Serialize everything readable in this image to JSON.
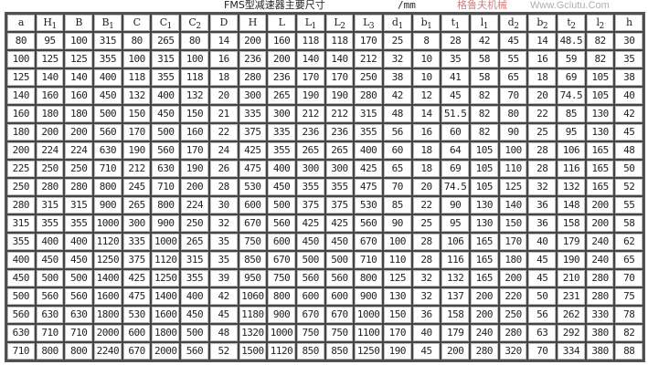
{
  "title": "FMS型减速器主要尺寸",
  "unit": "/mm",
  "watermark": {
    "text": "Www.Gclutu.Com",
    "chinese": "格鲁夫机械"
  },
  "headers": [
    {
      "base": "a",
      "sub": ""
    },
    {
      "base": "H",
      "sub": "1"
    },
    {
      "base": "B",
      "sub": ""
    },
    {
      "base": "B",
      "sub": "1"
    },
    {
      "base": "C",
      "sub": ""
    },
    {
      "base": "C",
      "sub": "1"
    },
    {
      "base": "C",
      "sub": "2"
    },
    {
      "base": "D",
      "sub": ""
    },
    {
      "base": "H",
      "sub": ""
    },
    {
      "base": "L",
      "sub": ""
    },
    {
      "base": "L",
      "sub": "1"
    },
    {
      "base": "L",
      "sub": "2"
    },
    {
      "base": "L",
      "sub": "3"
    },
    {
      "base": "d",
      "sub": "1"
    },
    {
      "base": "b",
      "sub": "1"
    },
    {
      "base": "t",
      "sub": "1"
    },
    {
      "base": "l",
      "sub": "1"
    },
    {
      "base": "d",
      "sub": "2"
    },
    {
      "base": "b",
      "sub": "2"
    },
    {
      "base": "t",
      "sub": "2"
    },
    {
      "base": "l",
      "sub": "2"
    },
    {
      "base": "h",
      "sub": ""
    }
  ],
  "rows": [
    [
      "80",
      "95",
      "100",
      "315",
      "80",
      "265",
      "80",
      "14",
      "200",
      "160",
      "118",
      "118",
      "170",
      "25",
      "8",
      "28",
      "42",
      "45",
      "14",
      "48.5",
      "82",
      "30"
    ],
    [
      "100",
      "125",
      "125",
      "355",
      "100",
      "315",
      "100",
      "16",
      "236",
      "200",
      "140",
      "140",
      "212",
      "32",
      "10",
      "35",
      "58",
      "55",
      "16",
      "59",
      "82",
      "35"
    ],
    [
      "125",
      "140",
      "140",
      "400",
      "118",
      "355",
      "118",
      "18",
      "280",
      "236",
      "170",
      "170",
      "250",
      "38",
      "10",
      "41",
      "58",
      "65",
      "18",
      "69",
      "105",
      "38"
    ],
    [
      "140",
      "160",
      "160",
      "450",
      "132",
      "400",
      "132",
      "20",
      "300",
      "265",
      "190",
      "190",
      "280",
      "42",
      "12",
      "45",
      "82",
      "70",
      "20",
      "74.5",
      "105",
      "40"
    ],
    [
      "160",
      "180",
      "180",
      "500",
      "150",
      "450",
      "150",
      "21",
      "335",
      "300",
      "212",
      "212",
      "315",
      "48",
      "14",
      "51.5",
      "82",
      "80",
      "22",
      "85",
      "130",
      "42"
    ],
    [
      "180",
      "200",
      "200",
      "560",
      "170",
      "500",
      "160",
      "22",
      "375",
      "335",
      "236",
      "236",
      "355",
      "56",
      "16",
      "60",
      "82",
      "90",
      "25",
      "95",
      "130",
      "45"
    ],
    [
      "200",
      "224",
      "224",
      "630",
      "190",
      "560",
      "170",
      "24",
      "425",
      "355",
      "265",
      "265",
      "400",
      "60",
      "18",
      "64",
      "105",
      "100",
      "28",
      "106",
      "165",
      "48"
    ],
    [
      "225",
      "250",
      "250",
      "710",
      "212",
      "630",
      "190",
      "26",
      "475",
      "400",
      "300",
      "300",
      "425",
      "65",
      "18",
      "69",
      "105",
      "110",
      "28",
      "116",
      "165",
      "50"
    ],
    [
      "250",
      "280",
      "280",
      "800",
      "245",
      "710",
      "200",
      "28",
      "530",
      "450",
      "355",
      "355",
      "475",
      "70",
      "20",
      "74.5",
      "105",
      "125",
      "32",
      "132",
      "165",
      "52"
    ],
    [
      "280",
      "315",
      "315",
      "900",
      "265",
      "800",
      "224",
      "30",
      "600",
      "500",
      "375",
      "375",
      "530",
      "85",
      "22",
      "90",
      "130",
      "140",
      "36",
      "148",
      "200",
      "55"
    ],
    [
      "315",
      "355",
      "355",
      "1000",
      "300",
      "900",
      "250",
      "32",
      "670",
      "560",
      "425",
      "425",
      "560",
      "90",
      "25",
      "95",
      "130",
      "150",
      "36",
      "158",
      "200",
      "58"
    ],
    [
      "355",
      "400",
      "400",
      "1120",
      "335",
      "1000",
      "265",
      "35",
      "750",
      "600",
      "450",
      "450",
      "670",
      "100",
      "28",
      "106",
      "165",
      "170",
      "40",
      "179",
      "240",
      "62"
    ],
    [
      "400",
      "450",
      "450",
      "1250",
      "375",
      "1120",
      "315",
      "35",
      "850",
      "670",
      "500",
      "500",
      "710",
      "110",
      "28",
      "116",
      "165",
      "180",
      "45",
      "190",
      "240",
      "65"
    ],
    [
      "450",
      "500",
      "500",
      "1400",
      "425",
      "1250",
      "355",
      "39",
      "950",
      "750",
      "560",
      "560",
      "800",
      "125",
      "32",
      "132",
      "165",
      "200",
      "45",
      "210",
      "280",
      "70"
    ],
    [
      "500",
      "560",
      "560",
      "1600",
      "475",
      "1400",
      "400",
      "42",
      "1060",
      "800",
      "600",
      "600",
      "900",
      "130",
      "32",
      "137",
      "200",
      "220",
      "50",
      "231",
      "280",
      "75"
    ],
    [
      "560",
      "630",
      "630",
      "1800",
      "530",
      "1600",
      "450",
      "45",
      "1180",
      "900",
      "670",
      "670",
      "1000",
      "150",
      "36",
      "158",
      "200",
      "250",
      "56",
      "262",
      "330",
      "78"
    ],
    [
      "630",
      "710",
      "710",
      "2000",
      "600",
      "1800",
      "500",
      "48",
      "1320",
      "1000",
      "750",
      "750",
      "1100",
      "170",
      "40",
      "179",
      "240",
      "280",
      "63",
      "292",
      "380",
      "82"
    ],
    [
      "710",
      "800",
      "800",
      "2240",
      "670",
      "2000",
      "560",
      "52",
      "1500",
      "1120",
      "850",
      "850",
      "1250",
      "190",
      "45",
      "200",
      "280",
      "320",
      "70",
      "334",
      "380",
      "88"
    ]
  ]
}
